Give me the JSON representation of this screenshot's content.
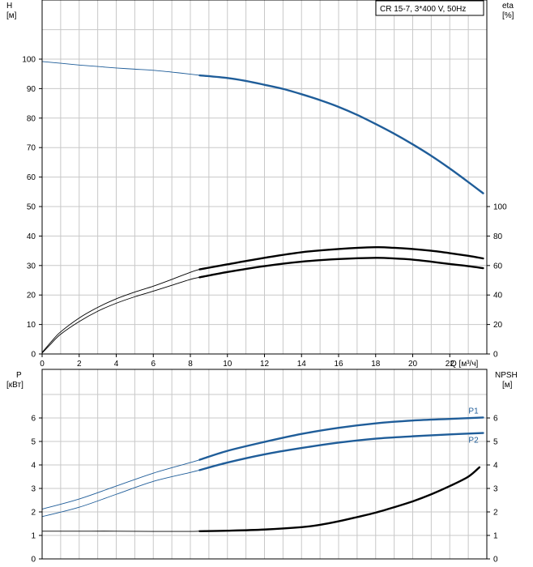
{
  "chart_data": [
    {
      "panel": "top",
      "type": "line",
      "legend_text": "CR 15-7, 3*400 V, 50Hz",
      "left_axis": {
        "name": "H",
        "unit": "[м]",
        "ticks": [
          0,
          10,
          20,
          30,
          40,
          50,
          60,
          70,
          80,
          90,
          100
        ],
        "ylim": [
          0,
          110
        ]
      },
      "right_axis": {
        "name": "eta",
        "unit": "[%]",
        "ticks": [
          0,
          20,
          40,
          60,
          80,
          100
        ],
        "ylim": [
          0,
          100
        ]
      },
      "x_axis": {
        "label": "Q [м³/ч]",
        "ticks": [
          0,
          2,
          4,
          6,
          8,
          10,
          12,
          14,
          16,
          18,
          20,
          22
        ],
        "xlim": [
          0,
          24
        ]
      },
      "grid": true,
      "series": [
        {
          "id": "H",
          "axis": "left",
          "color": "#1f5d99",
          "points": [
            [
              0,
              99.2
            ],
            [
              1,
              98.6
            ],
            [
              2,
              98.0
            ],
            [
              3,
              97.5
            ],
            [
              4,
              97.0
            ],
            [
              5,
              96.6
            ],
            [
              6,
              96.2
            ],
            [
              7,
              95.6
            ],
            [
              8,
              94.9
            ],
            [
              8.5,
              94.5
            ],
            [
              10,
              93.6
            ],
            [
              11,
              92.6
            ],
            [
              12,
              91.3
            ],
            [
              13,
              89.9
            ],
            [
              14,
              88.1
            ],
            [
              15,
              86.1
            ],
            [
              16,
              83.8
            ],
            [
              17,
              81.1
            ],
            [
              18,
              78.0
            ],
            [
              19,
              74.7
            ],
            [
              20,
              71.1
            ],
            [
              21,
              67.2
            ],
            [
              22,
              62.9
            ],
            [
              23,
              58.3
            ],
            [
              23.8,
              54.5
            ]
          ],
          "thin_below_x": 8.5
        },
        {
          "id": "eta_upper",
          "axis": "left",
          "color": "#000000",
          "points": [
            [
              0,
              0.5
            ],
            [
              0.5,
              4.2
            ],
            [
              1,
              7.5
            ],
            [
              2,
              12.2
            ],
            [
              3,
              15.8
            ],
            [
              4,
              18.7
            ],
            [
              5,
              21.0
            ],
            [
              6,
              23.0
            ],
            [
              7,
              25.3
            ],
            [
              8,
              27.7
            ],
            [
              8.5,
              28.7
            ],
            [
              10,
              30.4
            ],
            [
              12,
              32.6
            ],
            [
              14,
              34.5
            ],
            [
              16,
              35.6
            ],
            [
              18,
              36.2
            ],
            [
              19,
              36.0
            ],
            [
              20,
              35.6
            ],
            [
              21,
              35.0
            ],
            [
              22,
              34.2
            ],
            [
              23,
              33.3
            ],
            [
              23.8,
              32.4
            ]
          ],
          "thin_below_x": 8.5
        },
        {
          "id": "eta_lower",
          "axis": "left",
          "color": "#000000",
          "points": [
            [
              0,
              0.3
            ],
            [
              0.5,
              3.6
            ],
            [
              1,
              6.7
            ],
            [
              2,
              11.0
            ],
            [
              3,
              14.5
            ],
            [
              4,
              17.2
            ],
            [
              5,
              19.4
            ],
            [
              6,
              21.3
            ],
            [
              7,
              23.3
            ],
            [
              8,
              25.3
            ],
            [
              8.5,
              26.0
            ],
            [
              10,
              27.8
            ],
            [
              12,
              29.8
            ],
            [
              14,
              31.3
            ],
            [
              16,
              32.2
            ],
            [
              18,
              32.6
            ],
            [
              19,
              32.4
            ],
            [
              20,
              32.0
            ],
            [
              21,
              31.3
            ],
            [
              22,
              30.5
            ],
            [
              23,
              29.8
            ],
            [
              23.8,
              29.1
            ]
          ],
          "thin_below_x": 8.5
        }
      ]
    },
    {
      "panel": "bottom",
      "type": "line",
      "left_axis": {
        "name": "P",
        "unit": "[кВт]",
        "ticks": [
          0,
          1,
          2,
          3,
          4,
          5,
          6
        ],
        "ylim": [
          0,
          7
        ]
      },
      "right_axis": {
        "name": "NPSH",
        "unit": "[м]",
        "ticks": [
          0,
          1,
          2,
          3,
          4,
          5,
          6
        ],
        "ylim": [
          0,
          7
        ]
      },
      "x_axis": {
        "xlim": [
          0,
          24
        ]
      },
      "grid": true,
      "series": [
        {
          "id": "P1",
          "name": "P1",
          "axis": "left",
          "color": "#1f5d99",
          "points": [
            [
              0,
              2.12
            ],
            [
              2,
              2.55
            ],
            [
              4,
              3.1
            ],
            [
              6,
              3.65
            ],
            [
              8,
              4.1
            ],
            [
              8.5,
              4.22
            ],
            [
              10,
              4.6
            ],
            [
              12,
              4.98
            ],
            [
              14,
              5.32
            ],
            [
              16,
              5.58
            ],
            [
              18,
              5.77
            ],
            [
              20,
              5.89
            ],
            [
              22,
              5.96
            ],
            [
              23.8,
              6.02
            ]
          ],
          "thin_below_x": 8.5
        },
        {
          "id": "P2",
          "name": "P2",
          "axis": "left",
          "color": "#1f5d99",
          "points": [
            [
              0,
              1.8
            ],
            [
              2,
              2.2
            ],
            [
              4,
              2.75
            ],
            [
              6,
              3.3
            ],
            [
              8,
              3.68
            ],
            [
              8.5,
              3.78
            ],
            [
              10,
              4.1
            ],
            [
              12,
              4.45
            ],
            [
              14,
              4.72
            ],
            [
              16,
              4.95
            ],
            [
              18,
              5.12
            ],
            [
              20,
              5.22
            ],
            [
              22,
              5.3
            ],
            [
              23.8,
              5.36
            ]
          ],
          "thin_below_x": 8.5
        },
        {
          "id": "NPSH",
          "axis": "right",
          "color": "#000000",
          "points": [
            [
              0,
              1.18
            ],
            [
              2,
              1.18
            ],
            [
              4,
              1.18
            ],
            [
              6,
              1.17
            ],
            [
              8,
              1.17
            ],
            [
              8.5,
              1.18
            ],
            [
              10,
              1.2
            ],
            [
              12,
              1.25
            ],
            [
              14,
              1.35
            ],
            [
              15,
              1.45
            ],
            [
              16,
              1.6
            ],
            [
              17,
              1.78
            ],
            [
              18,
              1.97
            ],
            [
              19,
              2.2
            ],
            [
              20,
              2.45
            ],
            [
              21,
              2.75
            ],
            [
              22,
              3.1
            ],
            [
              23,
              3.5
            ],
            [
              23.6,
              3.9
            ]
          ],
          "thin_below_x": 8.5
        }
      ]
    }
  ]
}
